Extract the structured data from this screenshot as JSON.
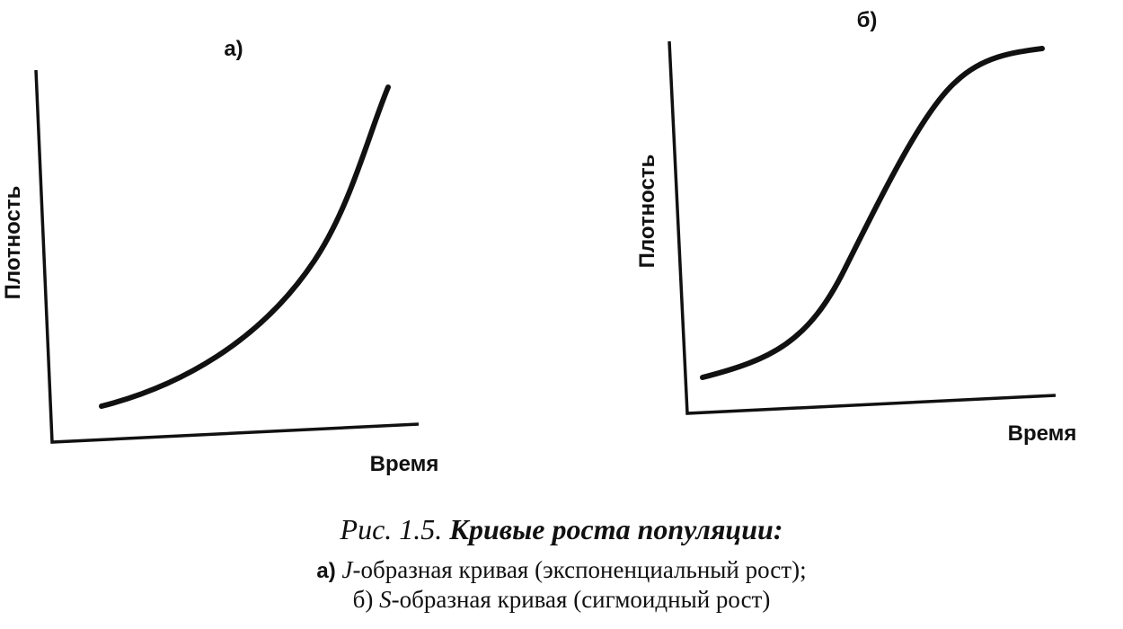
{
  "panels": [
    {
      "label": "а)",
      "y_label": "Плотность",
      "x_label": "Время"
    },
    {
      "label": "б)",
      "y_label": "Плотность",
      "x_label": "Время"
    }
  ],
  "caption": {
    "number": "Рис. 1.5.",
    "title": "Кривые роста популяции:",
    "lines": [
      {
        "marker": "а)",
        "letter": "J",
        "text": "-образная кривая (экспоненциальный рост);"
      },
      {
        "marker": "б)",
        "letter": "S",
        "text": "-образная кривая (сигмоидный рост)"
      }
    ]
  }
}
